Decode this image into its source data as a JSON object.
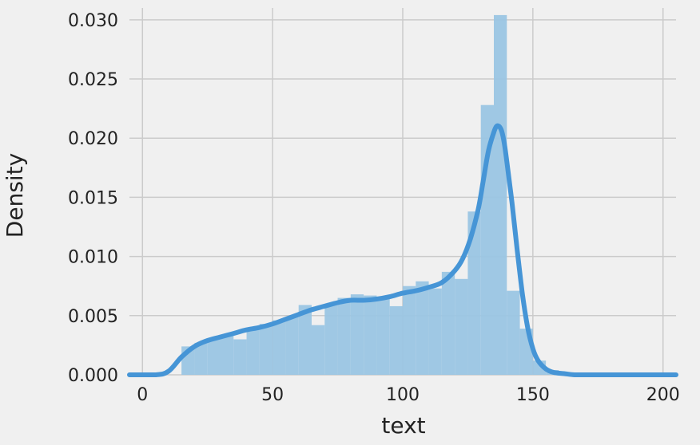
{
  "chart_data": {
    "type": "bar",
    "title": "",
    "xlabel": "text",
    "ylabel": "Density",
    "xlim": [
      -5,
      205
    ],
    "ylim": [
      0,
      0.031
    ],
    "xticks": [
      0,
      50,
      100,
      150,
      200
    ],
    "xtick_labels": [
      "0",
      "50",
      "100",
      "150",
      "200"
    ],
    "yticks": [
      0,
      0.005,
      0.01,
      0.015,
      0.02,
      0.025,
      0.03
    ],
    "ytick_labels": [
      "0.000",
      "0.005",
      "0.010",
      "0.015",
      "0.020",
      "0.025",
      "0.030"
    ],
    "grid": true,
    "histogram": {
      "bins": [
        {
          "x0": 15,
          "x1": 20,
          "value": 0.0024
        },
        {
          "x0": 20,
          "x1": 25,
          "value": 0.0027
        },
        {
          "x0": 25,
          "x1": 30,
          "value": 0.0031
        },
        {
          "x0": 30,
          "x1": 35,
          "value": 0.0034
        },
        {
          "x0": 35,
          "x1": 40,
          "value": 0.003
        },
        {
          "x0": 40,
          "x1": 45,
          "value": 0.004
        },
        {
          "x0": 45,
          "x1": 50,
          "value": 0.0043
        },
        {
          "x0": 50,
          "x1": 55,
          "value": 0.0046
        },
        {
          "x0": 55,
          "x1": 60,
          "value": 0.0049
        },
        {
          "x0": 60,
          "x1": 65,
          "value": 0.0059
        },
        {
          "x0": 65,
          "x1": 70,
          "value": 0.0042
        },
        {
          "x0": 70,
          "x1": 75,
          "value": 0.006
        },
        {
          "x0": 75,
          "x1": 80,
          "value": 0.0065
        },
        {
          "x0": 80,
          "x1": 85,
          "value": 0.0068
        },
        {
          "x0": 85,
          "x1": 90,
          "value": 0.0067
        },
        {
          "x0": 90,
          "x1": 95,
          "value": 0.0065
        },
        {
          "x0": 95,
          "x1": 100,
          "value": 0.0058
        },
        {
          "x0": 100,
          "x1": 105,
          "value": 0.0075
        },
        {
          "x0": 105,
          "x1": 110,
          "value": 0.0079
        },
        {
          "x0": 110,
          "x1": 115,
          "value": 0.0073
        },
        {
          "x0": 115,
          "x1": 120,
          "value": 0.0087
        },
        {
          "x0": 120,
          "x1": 125,
          "value": 0.0081
        },
        {
          "x0": 125,
          "x1": 130,
          "value": 0.0138
        },
        {
          "x0": 130,
          "x1": 135,
          "value": 0.0228
        },
        {
          "x0": 135,
          "x1": 140,
          "value": 0.0304
        },
        {
          "x0": 140,
          "x1": 145,
          "value": 0.0071
        },
        {
          "x0": 145,
          "x1": 150,
          "value": 0.0039
        },
        {
          "x0": 150,
          "x1": 155,
          "value": 0.0012
        },
        {
          "x0": 155,
          "x1": 160,
          "value": 0.0004
        }
      ]
    },
    "kde": {
      "x": [
        -5,
        5,
        10,
        15,
        20,
        25,
        30,
        35,
        40,
        45,
        50,
        55,
        60,
        65,
        70,
        75,
        80,
        85,
        90,
        95,
        100,
        105,
        110,
        115,
        120,
        123,
        126,
        129,
        131,
        133,
        135,
        136,
        137,
        138,
        139,
        140,
        142,
        144,
        146,
        148,
        150,
        152,
        155,
        158,
        162,
        166,
        170,
        180,
        205
      ],
      "y": [
        0.0,
        0.0,
        0.0003,
        0.0015,
        0.0024,
        0.0029,
        0.0032,
        0.0035,
        0.0038,
        0.004,
        0.0043,
        0.0047,
        0.0051,
        0.0055,
        0.0058,
        0.0061,
        0.0063,
        0.0063,
        0.0064,
        0.0066,
        0.0069,
        0.0071,
        0.0074,
        0.0078,
        0.0088,
        0.0098,
        0.0115,
        0.014,
        0.0165,
        0.019,
        0.0205,
        0.021,
        0.021,
        0.0206,
        0.0196,
        0.018,
        0.0145,
        0.0105,
        0.0068,
        0.004,
        0.0022,
        0.0012,
        0.0005,
        0.0002,
        0.0001,
        0.0,
        0.0,
        0.0,
        0.0
      ]
    },
    "colors": {
      "background": "#f0f0f0",
      "grid": "#cbcbcb",
      "bar": "#9ac5e3",
      "line": "#4695d6",
      "text": "#222222"
    }
  }
}
